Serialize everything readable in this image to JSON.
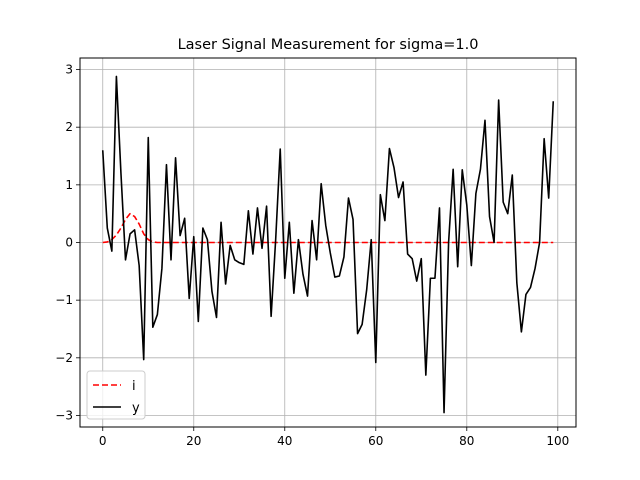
{
  "chart_data": {
    "type": "line",
    "title": "Laser Signal Measurement for sigma=1.0",
    "xlabel": "",
    "ylabel": "",
    "xlim": [
      -5,
      104
    ],
    "ylim": [
      -3.2,
      3.2
    ],
    "xticks": [
      0,
      20,
      40,
      60,
      80,
      100
    ],
    "yticks": [
      -3,
      -2,
      -1,
      0,
      1,
      2,
      3
    ],
    "xtick_labels": [
      "0",
      "20",
      "40",
      "60",
      "80",
      "100"
    ],
    "ytick_labels": [
      "−3",
      "−2",
      "−1",
      "0",
      "1",
      "2",
      "3"
    ],
    "grid": true,
    "legend_position": "bottom-left",
    "series": [
      {
        "name": "i",
        "color": "#ff0000",
        "style": "dashed",
        "x": [
          0,
          1,
          2,
          3,
          4,
          5,
          6,
          7,
          8,
          9,
          10,
          11,
          12,
          13,
          14,
          15,
          16,
          17,
          18,
          19,
          20,
          21,
          22,
          23,
          24,
          25,
          26,
          27,
          28,
          29,
          30,
          31,
          32,
          33,
          34,
          35,
          36,
          37,
          38,
          39,
          40,
          41,
          42,
          43,
          44,
          45,
          46,
          47,
          48,
          49,
          50,
          51,
          52,
          53,
          54,
          55,
          56,
          57,
          58,
          59,
          60,
          61,
          62,
          63,
          64,
          65,
          66,
          67,
          68,
          69,
          70,
          71,
          72,
          73,
          74,
          75,
          76,
          77,
          78,
          79,
          80,
          81,
          82,
          83,
          84,
          85,
          86,
          87,
          88,
          89,
          90,
          91,
          92,
          93,
          94,
          95,
          96,
          97,
          98,
          99
        ],
        "y": [
          0.0,
          0.01,
          0.05,
          0.13,
          0.25,
          0.4,
          0.5,
          0.45,
          0.32,
          0.15,
          0.05,
          0.01,
          0,
          0,
          0,
          0,
          0,
          0,
          0,
          0,
          0,
          0,
          0,
          0,
          0,
          0,
          0,
          0,
          0,
          0,
          0,
          0,
          0,
          0,
          0,
          0,
          0,
          0,
          0,
          0,
          0,
          0,
          0,
          0,
          0,
          0,
          0,
          0,
          0,
          0,
          0,
          0,
          0,
          0,
          0,
          0,
          0,
          0,
          0,
          0,
          0,
          0,
          0,
          0,
          0,
          0,
          0,
          0,
          0,
          0,
          0,
          0,
          0,
          0,
          0,
          0,
          0,
          0,
          0,
          0,
          0,
          0,
          0,
          0,
          0,
          0,
          0,
          0,
          0,
          0,
          0,
          0,
          0,
          0,
          0,
          0,
          0,
          0,
          0,
          0
        ]
      },
      {
        "name": "y",
        "color": "#000000",
        "style": "solid",
        "x": [
          0,
          1,
          2,
          3,
          4,
          5,
          6,
          7,
          8,
          9,
          10,
          11,
          12,
          13,
          14,
          15,
          16,
          17,
          18,
          19,
          20,
          21,
          22,
          23,
          24,
          25,
          26,
          27,
          28,
          29,
          30,
          31,
          32,
          33,
          34,
          35,
          36,
          37,
          38,
          39,
          40,
          41,
          42,
          43,
          44,
          45,
          46,
          47,
          48,
          49,
          50,
          51,
          52,
          53,
          54,
          55,
          56,
          57,
          58,
          59,
          60,
          61,
          62,
          63,
          64,
          65,
          66,
          67,
          68,
          69,
          70,
          71,
          72,
          73,
          74,
          75,
          76,
          77,
          78,
          79,
          80,
          81,
          82,
          83,
          84,
          85,
          86,
          87,
          88,
          89,
          90,
          91,
          92,
          93,
          94,
          95,
          96,
          97,
          98,
          99
        ],
        "y": [
          1.6,
          0.25,
          -0.15,
          2.88,
          1.2,
          -0.3,
          0.15,
          0.22,
          -0.4,
          -2.03,
          1.82,
          -1.47,
          -1.25,
          -0.45,
          1.35,
          -0.3,
          1.47,
          0.12,
          0.42,
          -0.97,
          0.1,
          -1.37,
          0.25,
          0.05,
          -0.85,
          -1.3,
          0.35,
          -0.72,
          -0.05,
          -0.3,
          -0.35,
          -0.38,
          0.55,
          -0.2,
          0.6,
          -0.1,
          0.63,
          -1.28,
          0.05,
          1.62,
          -0.62,
          0.35,
          -0.88,
          0.05,
          -0.55,
          -0.93,
          0.38,
          -0.3,
          1.02,
          0.3,
          -0.18,
          -0.6,
          -0.58,
          -0.25,
          0.77,
          0.4,
          -1.58,
          -1.42,
          -0.82,
          0.05,
          -2.08,
          0.83,
          0.38,
          1.63,
          1.3,
          0.78,
          1.05,
          -0.2,
          -0.28,
          -0.67,
          -0.28,
          -2.3,
          -0.62,
          -0.62,
          0.6,
          -2.95,
          0.0,
          1.27,
          -0.42,
          1.26,
          0.65,
          -0.4,
          0.85,
          1.27,
          2.12,
          0.45,
          0.0,
          2.47,
          0.7,
          0.5,
          1.17,
          -0.7,
          -1.55,
          -0.9,
          -0.78,
          -0.45,
          0.0,
          1.8,
          0.77,
          2.45
        ]
      }
    ]
  }
}
